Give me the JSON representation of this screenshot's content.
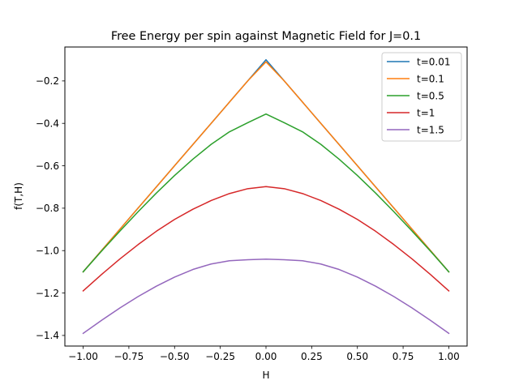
{
  "chart_data": {
    "type": "line",
    "title": "Free Energy per spin against Magnetic Field for J=0.1",
    "xlabel": "H",
    "ylabel": "f(T,H)",
    "xlim": [
      -1.1,
      1.1
    ],
    "ylim": [
      -1.45,
      -0.04
    ],
    "xticks": [
      -1.0,
      -0.75,
      -0.5,
      -0.25,
      0.0,
      0.25,
      0.5,
      0.75,
      1.0
    ],
    "xtick_labels": [
      "−1.00",
      "−0.75",
      "−0.50",
      "−0.25",
      "0.00",
      "0.25",
      "0.50",
      "0.75",
      "1.00"
    ],
    "yticks": [
      -1.4,
      -1.2,
      -1.0,
      -0.8,
      -0.6,
      -0.4,
      -0.2
    ],
    "ytick_labels": [
      "−1.4",
      "−1.2",
      "−1.0",
      "−0.8",
      "−0.6",
      "−0.4",
      "−0.2"
    ],
    "grid": false,
    "legend_position": "top-right",
    "x": [
      -1.0,
      -0.9,
      -0.8,
      -0.7,
      -0.6,
      -0.5,
      -0.4,
      -0.3,
      -0.2,
      -0.1,
      0.0,
      0.1,
      0.2,
      0.3,
      0.4,
      0.5,
      0.6,
      0.7,
      0.8,
      0.9,
      1.0
    ],
    "series": [
      {
        "name": "t=0.01",
        "color": "#1f77b4",
        "values": [
          -1.1,
          -1.0,
          -0.9,
          -0.8,
          -0.7,
          -0.6,
          -0.5,
          -0.4,
          -0.3,
          -0.2,
          -0.1,
          -0.2,
          -0.3,
          -0.4,
          -0.5,
          -0.6,
          -0.7,
          -0.8,
          -0.9,
          -1.0,
          -1.1
        ]
      },
      {
        "name": "t=0.1",
        "color": "#ff7f0e",
        "values": [
          -1.1,
          -1.0,
          -0.9,
          -0.8,
          -0.7,
          -0.6,
          -0.5,
          -0.4,
          -0.3,
          -0.2,
          -0.11,
          -0.2,
          -0.3,
          -0.4,
          -0.5,
          -0.6,
          -0.7,
          -0.8,
          -0.9,
          -1.0,
          -1.1
        ]
      },
      {
        "name": "t=0.5",
        "color": "#2ca02c",
        "values": [
          -1.1,
          -1.003,
          -0.909,
          -0.817,
          -0.729,
          -0.646,
          -0.569,
          -0.499,
          -0.44,
          -0.397,
          -0.356,
          -0.397,
          -0.44,
          -0.499,
          -0.569,
          -0.646,
          -0.729,
          -0.817,
          -0.909,
          -1.003,
          -1.1
        ]
      },
      {
        "name": "t=1",
        "color": "#d62728",
        "values": [
          -1.19,
          -1.113,
          -1.04,
          -0.972,
          -0.909,
          -0.853,
          -0.805,
          -0.764,
          -0.731,
          -0.708,
          -0.698,
          -0.708,
          -0.731,
          -0.764,
          -0.805,
          -0.853,
          -0.909,
          -0.972,
          -1.04,
          -1.113,
          -1.19
        ]
      },
      {
        "name": "t=1.5",
        "color": "#9467bd",
        "values": [
          -1.39,
          -1.329,
          -1.271,
          -1.217,
          -1.168,
          -1.125,
          -1.089,
          -1.063,
          -1.048,
          -1.043,
          -1.04,
          -1.043,
          -1.048,
          -1.063,
          -1.089,
          -1.125,
          -1.168,
          -1.217,
          -1.271,
          -1.329,
          -1.39
        ]
      }
    ]
  }
}
